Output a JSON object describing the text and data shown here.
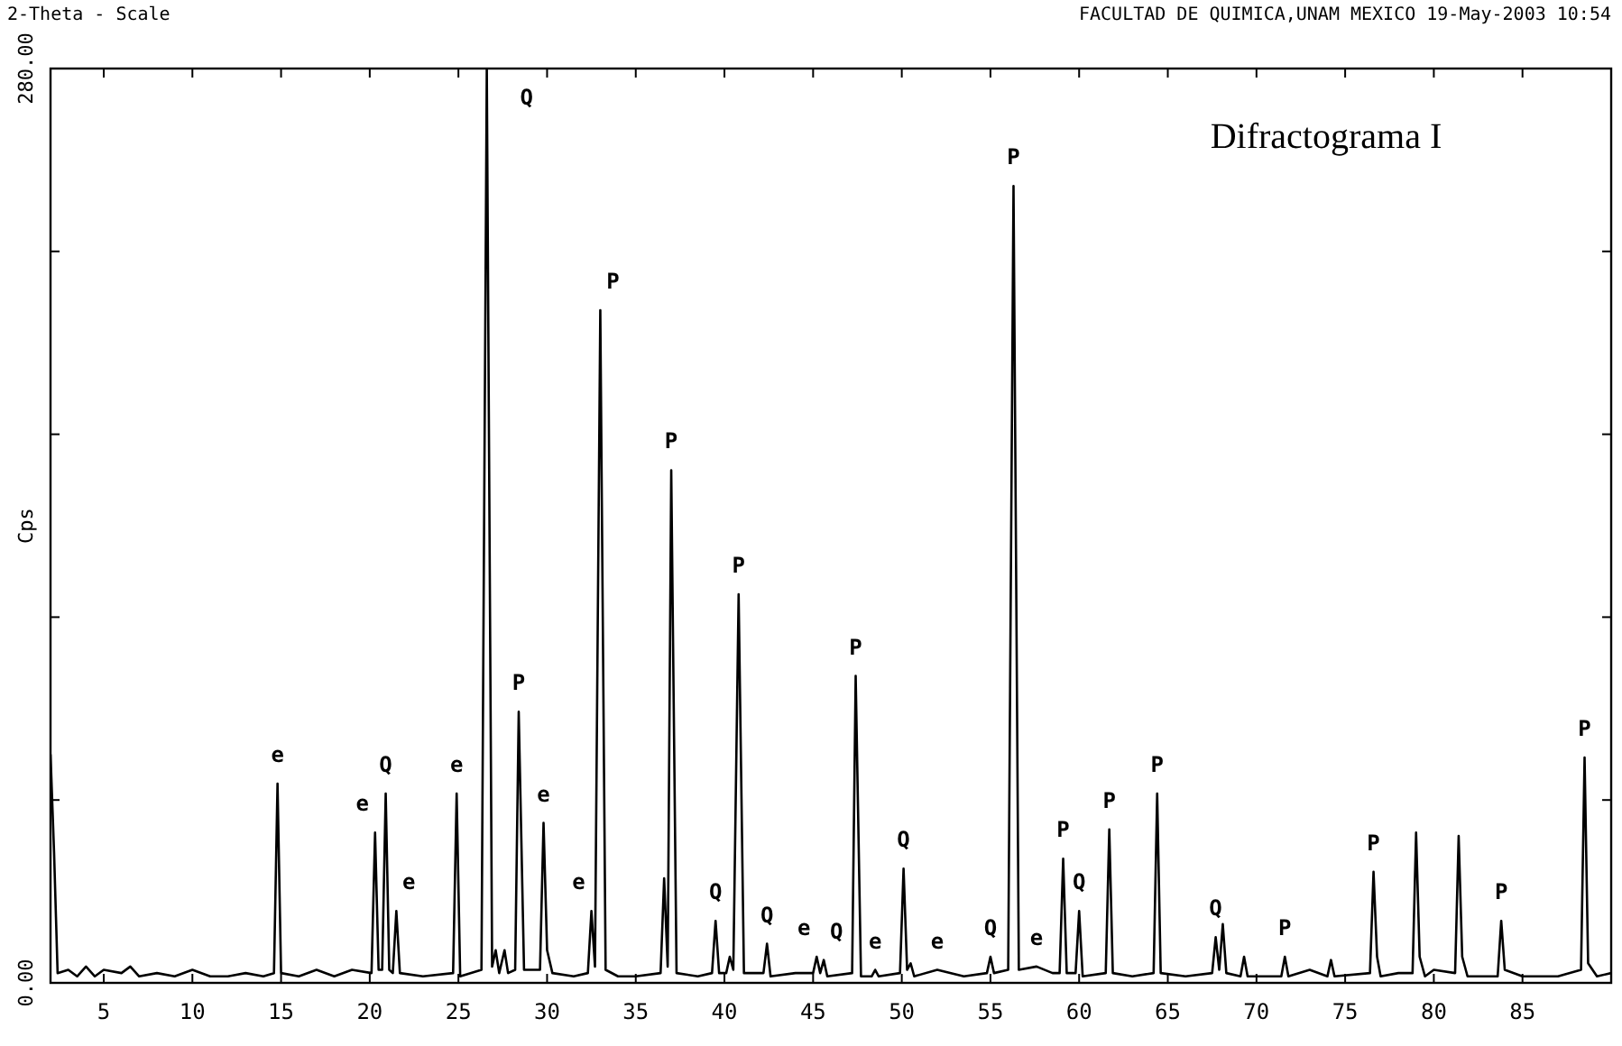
{
  "chart_data": {
    "type": "line",
    "title": "Difractograma I",
    "xlabel": "2-Theta - Scale",
    "ylabel": "Cps",
    "annotations": [
      "FACULTAD DE QUIMICA,UNAM MEXICO 19-May-2003 10:54",
      {
        "text": "e",
        "x": 14.8,
        "y": 61
      },
      {
        "text": "e",
        "x": 20.3,
        "y": 46
      },
      {
        "text": "Q",
        "x": 20.9,
        "y": 58
      },
      {
        "text": "e",
        "x": 21.5,
        "y": 22
      },
      {
        "text": "e",
        "x": 24.9,
        "y": 58
      },
      {
        "text": "Q",
        "x": 26.6,
        "y": 280
      },
      {
        "text": "P",
        "x": 28.4,
        "y": 83
      },
      {
        "text": "e",
        "x": 29.8,
        "y": 49
      },
      {
        "text": "e",
        "x": 32.5,
        "y": 22
      },
      {
        "text": "P",
        "x": 33.0,
        "y": 206
      },
      {
        "text": "P",
        "x": 37.0,
        "y": 157
      },
      {
        "text": "Q",
        "x": 39.5,
        "y": 19
      },
      {
        "text": "P",
        "x": 40.8,
        "y": 119
      },
      {
        "text": "Q",
        "x": 42.4,
        "y": 12
      },
      {
        "text": "e",
        "x": 45.2,
        "y": 8
      },
      {
        "text": "Q",
        "x": 45.6,
        "y": 7
      },
      {
        "text": "P",
        "x": 47.4,
        "y": 94
      },
      {
        "text": "e",
        "x": 48.5,
        "y": 4
      },
      {
        "text": "Q",
        "x": 50.1,
        "y": 35
      },
      {
        "text": "e",
        "x": 52,
        "y": 4
      },
      {
        "text": "Q",
        "x": 55.0,
        "y": 8
      },
      {
        "text": "P",
        "x": 56.3,
        "y": 244
      },
      {
        "text": "e",
        "x": 57.6,
        "y": 5
      },
      {
        "text": "P",
        "x": 59.1,
        "y": 38
      },
      {
        "text": "Q",
        "x": 60.0,
        "y": 22
      },
      {
        "text": "P",
        "x": 61.7,
        "y": 47
      },
      {
        "text": "P",
        "x": 64.4,
        "y": 58
      },
      {
        "text": "Q",
        "x": 67.7,
        "y": 14
      },
      {
        "text": "P",
        "x": 71.6,
        "y": 8
      },
      {
        "text": "P",
        "x": 76.6,
        "y": 34
      },
      {
        "text": "P",
        "x": 83.8,
        "y": 19
      },
      {
        "text": "P",
        "x": 88.5,
        "y": 69
      }
    ],
    "x": [
      2.0,
      2.2,
      2.4,
      3,
      3.5,
      4,
      4.5,
      5,
      6,
      6.5,
      7,
      8,
      9,
      10,
      11,
      12,
      13,
      14,
      14.6,
      14.8,
      15.0,
      16,
      17,
      18,
      19,
      20.1,
      20.3,
      20.5,
      20.7,
      20.9,
      21.1,
      21.3,
      21.5,
      21.7,
      23,
      24.7,
      24.9,
      25.1,
      26.3,
      26.6,
      26.9,
      27.1,
      27.3,
      27.6,
      27.8,
      28.2,
      28.4,
      28.7,
      29.6,
      29.8,
      30.0,
      30.3,
      31.5,
      32.3,
      32.5,
      32.7,
      33.0,
      33.3,
      34,
      35,
      36.4,
      36.6,
      36.8,
      37.0,
      37.3,
      38.5,
      39.3,
      39.5,
      39.7,
      40.1,
      40.3,
      40.5,
      40.8,
      41.1,
      42.2,
      42.4,
      42.6,
      44,
      45.0,
      45.2,
      45.4,
      45.6,
      45.8,
      47.2,
      47.4,
      47.7,
      48.3,
      48.5,
      48.7,
      49.9,
      50.1,
      50.3,
      50.5,
      50.7,
      52,
      53.5,
      54.8,
      55.0,
      55.2,
      56.0,
      56.3,
      56.6,
      57.6,
      58.5,
      58.9,
      59.1,
      59.3,
      59.8,
      60.0,
      60.2,
      61.5,
      61.7,
      61.9,
      63,
      64.2,
      64.4,
      64.6,
      66,
      67.5,
      67.7,
      67.9,
      68.1,
      68.3,
      69.1,
      69.3,
      69.5,
      71.4,
      71.6,
      71.8,
      73,
      74.0,
      74.2,
      74.4,
      76.4,
      76.6,
      76.8,
      77.0,
      78,
      78.8,
      79.0,
      79.2,
      79.5,
      80,
      81.2,
      81.4,
      81.6,
      81.9,
      83.6,
      83.8,
      84.0,
      85,
      87,
      88.3,
      88.5,
      88.7,
      89.2,
      90
    ],
    "series": [
      {
        "color": "#000000",
        "values": [
          70,
          40,
          3,
          4,
          2,
          5,
          2,
          4,
          3,
          5,
          2,
          3,
          2,
          4,
          2,
          2,
          3,
          2,
          3,
          61,
          3,
          2,
          4,
          2,
          4,
          3,
          46,
          4,
          4,
          58,
          4,
          3,
          22,
          3,
          2,
          3,
          58,
          2,
          4,
          280,
          5,
          10,
          3,
          10,
          3,
          4,
          83,
          4,
          4,
          49,
          10,
          3,
          2,
          3,
          22,
          5,
          206,
          4,
          2,
          2,
          3,
          32,
          5,
          157,
          3,
          2,
          3,
          19,
          3,
          3,
          8,
          4,
          119,
          3,
          3,
          12,
          2,
          3,
          3,
          8,
          3,
          7,
          2,
          3,
          94,
          2,
          2,
          4,
          2,
          3,
          35,
          4,
          6,
          2,
          4,
          2,
          3,
          8,
          3,
          4,
          244,
          4,
          5,
          3,
          3,
          38,
          3,
          3,
          22,
          2,
          3,
          47,
          3,
          2,
          3,
          58,
          3,
          2,
          3,
          14,
          4,
          18,
          3,
          2,
          8,
          2,
          2,
          8,
          2,
          4,
          2,
          7,
          2,
          3,
          34,
          8,
          2,
          3,
          3,
          46,
          8,
          2,
          4,
          3,
          45,
          8,
          2,
          2,
          19,
          4,
          2,
          2,
          4,
          69,
          6,
          2,
          3
        ]
      }
    ],
    "xlim": [
      2,
      90
    ],
    "xticks": [
      5,
      10,
      15,
      20,
      25,
      30,
      35,
      40,
      45,
      50,
      55,
      60,
      65,
      70,
      75,
      80,
      85
    ],
    "ylim": [
      0,
      280
    ],
    "yticks": [
      {
        "value": 0,
        "label": "0.00"
      },
      {
        "value": 56,
        "label": null
      },
      {
        "value": 112,
        "label": null
      },
      {
        "value": 168,
        "label": null
      },
      {
        "value": 224,
        "label": null
      },
      {
        "value": 280,
        "label": "280.00"
      }
    ],
    "marker": "none",
    "line_style": "solid"
  }
}
